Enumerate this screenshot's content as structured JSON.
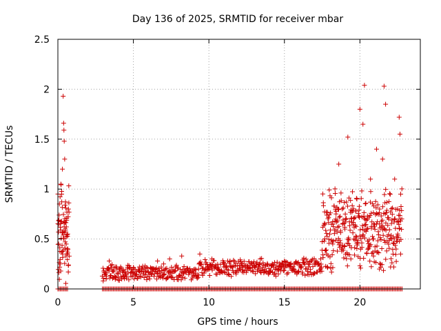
{
  "chart_data": {
    "type": "scatter",
    "title": "Day 136 of 2025, SRMTID for receiver mbar",
    "xlabel": "GPS time / hours",
    "ylabel": "SRMTID / TECUs",
    "xlim": [
      0,
      24
    ],
    "ylim": [
      0,
      2.5
    ],
    "xticks": [
      0,
      5,
      10,
      15,
      20
    ],
    "yticks": [
      0,
      0.5,
      1,
      1.5,
      2,
      2.5
    ],
    "xtick_labels": [
      "0",
      "5",
      "10",
      "15",
      "20"
    ],
    "ytick_labels": [
      "0",
      "0.5",
      "1",
      "1.5",
      "2",
      "2.5"
    ],
    "grid": true,
    "marker": "plus",
    "series": [
      {
        "name": "SRMTID",
        "color": "#cc0000",
        "points": [
          [
            0.05,
            0.45
          ],
          [
            0.1,
            0.85
          ],
          [
            0.15,
            0.25
          ],
          [
            0.2,
            1.05
          ],
          [
            0.25,
            0.95
          ],
          [
            0.3,
            1.2
          ],
          [
            0.35,
            1.93
          ],
          [
            0.38,
            1.66
          ],
          [
            0.4,
            1.59
          ],
          [
            0.42,
            1.48
          ],
          [
            0.45,
            1.3
          ],
          [
            0.48,
            0.84
          ],
          [
            0.5,
            0.6
          ],
          [
            0.55,
            0.45
          ],
          [
            0.6,
            0.35
          ],
          [
            0.65,
            0.55
          ],
          [
            0.7,
            0.24
          ],
          [
            3.0,
            0.08
          ],
          [
            3.2,
            0.1
          ],
          [
            3.4,
            0.28
          ],
          [
            3.6,
            0.18
          ],
          [
            3.8,
            0.12
          ],
          [
            4.0,
            0.15
          ],
          [
            4.3,
            0.13
          ],
          [
            4.6,
            0.2
          ],
          [
            5.0,
            0.16
          ],
          [
            5.4,
            0.22
          ],
          [
            5.8,
            0.18
          ],
          [
            6.2,
            0.2
          ],
          [
            6.6,
            0.28
          ],
          [
            7.0,
            0.25
          ],
          [
            7.4,
            0.3
          ],
          [
            7.8,
            0.22
          ],
          [
            8.2,
            0.33
          ],
          [
            8.6,
            0.2
          ],
          [
            9.0,
            0.18
          ],
          [
            9.4,
            0.35
          ],
          [
            9.8,
            0.25
          ],
          [
            10.2,
            0.3
          ],
          [
            10.6,
            0.2
          ],
          [
            11.0,
            0.22
          ],
          [
            11.4,
            0.28
          ],
          [
            11.8,
            0.15
          ],
          [
            12.2,
            0.25
          ],
          [
            12.6,
            0.2
          ],
          [
            13.0,
            0.22
          ],
          [
            13.4,
            0.3
          ],
          [
            13.8,
            0.18
          ],
          [
            14.2,
            0.25
          ],
          [
            14.6,
            0.15
          ],
          [
            15.0,
            0.28
          ],
          [
            15.4,
            0.22
          ],
          [
            15.8,
            0.26
          ],
          [
            16.2,
            0.15
          ],
          [
            16.6,
            0.22
          ],
          [
            17.0,
            0.25
          ],
          [
            17.4,
            0.3
          ],
          [
            17.8,
            0.35
          ],
          [
            18.0,
            0.55
          ],
          [
            18.2,
            0.45
          ],
          [
            18.4,
            0.7
          ],
          [
            18.6,
            1.25
          ],
          [
            18.8,
            0.4
          ],
          [
            19.0,
            0.6
          ],
          [
            19.2,
            1.52
          ],
          [
            19.4,
            0.3
          ],
          [
            19.6,
            0.5
          ],
          [
            19.8,
            0.9
          ],
          [
            20.0,
            1.8
          ],
          [
            20.2,
            1.65
          ],
          [
            20.3,
            2.04
          ],
          [
            20.5,
            0.7
          ],
          [
            20.7,
            1.1
          ],
          [
            20.9,
            0.5
          ],
          [
            21.1,
            1.4
          ],
          [
            21.3,
            0.8
          ],
          [
            21.5,
            1.3
          ],
          [
            21.6,
            2.03
          ],
          [
            21.7,
            1.85
          ],
          [
            21.9,
            0.7
          ],
          [
            22.1,
            0.5
          ],
          [
            22.3,
            1.1
          ],
          [
            22.5,
            0.55
          ],
          [
            22.6,
            1.72
          ],
          [
            22.65,
            1.55
          ],
          [
            22.7,
            0.95
          ]
        ]
      }
    ],
    "envelope": {
      "segments": [
        {
          "x_start": 0.0,
          "x_end": 0.75,
          "base": 0.55,
          "spread": 0.55
        },
        {
          "x_start": 2.95,
          "x_end": 9.3,
          "base": 0.16,
          "spread": 0.09
        },
        {
          "x_start": 9.3,
          "x_end": 17.5,
          "base": 0.22,
          "spread": 0.1
        },
        {
          "x_start": 17.5,
          "x_end": 22.8,
          "base": 0.6,
          "spread": 0.45
        }
      ],
      "zero_rows": [
        [
          0.0,
          0.7
        ],
        [
          2.95,
          22.8
        ]
      ]
    }
  }
}
